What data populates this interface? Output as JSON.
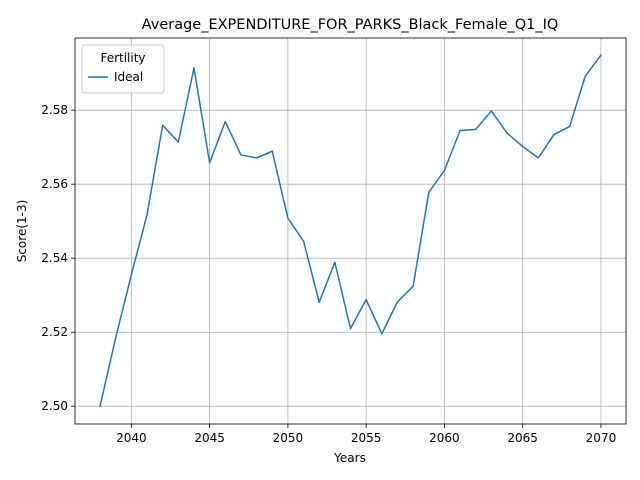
{
  "chart_data": {
    "type": "line",
    "title": "Average_EXPENDITURE_FOR_PARKS_Black_Female_Q1_IQ",
    "xlabel": "Years",
    "ylabel": "Score(1-3)",
    "xlim": [
      2036.4,
      2071.6
    ],
    "ylim": [
      2.4952,
      2.5995
    ],
    "xticks": [
      2040,
      2045,
      2050,
      2055,
      2060,
      2065,
      2070
    ],
    "yticks": [
      2.5,
      2.52,
      2.54,
      2.56,
      2.58
    ],
    "xtick_labels": [
      "2040",
      "2045",
      "2050",
      "2055",
      "2060",
      "2065",
      "2070"
    ],
    "ytick_labels": [
      "2.50",
      "2.52",
      "2.54",
      "2.56",
      "2.58"
    ],
    "grid": true,
    "legend": {
      "title": "Fertility",
      "position": "top-left"
    },
    "x": [
      2038,
      2039,
      2040,
      2041,
      2042,
      2043,
      2044,
      2045,
      2046,
      2047,
      2048,
      2049,
      2050,
      2051,
      2052,
      2053,
      2054,
      2055,
      2056,
      2057,
      2058,
      2059,
      2060,
      2061,
      2062,
      2063,
      2064,
      2065,
      2066,
      2067,
      2068,
      2069,
      2070
    ],
    "series": [
      {
        "name": "Ideal",
        "color": "#1f77b4",
        "values": [
          2.5,
          2.5185,
          2.5355,
          2.5517,
          2.5759,
          2.5714,
          2.5914,
          2.5658,
          2.5769,
          2.5679,
          2.5671,
          2.5689,
          2.5508,
          2.5446,
          2.5281,
          2.5389,
          2.521,
          2.5288,
          2.5196,
          2.5282,
          2.5324,
          2.5578,
          2.5637,
          2.5745,
          2.5748,
          2.5798,
          2.5738,
          2.5702,
          2.5671,
          2.5734,
          2.5756,
          2.5892,
          2.5949
        ]
      }
    ]
  }
}
